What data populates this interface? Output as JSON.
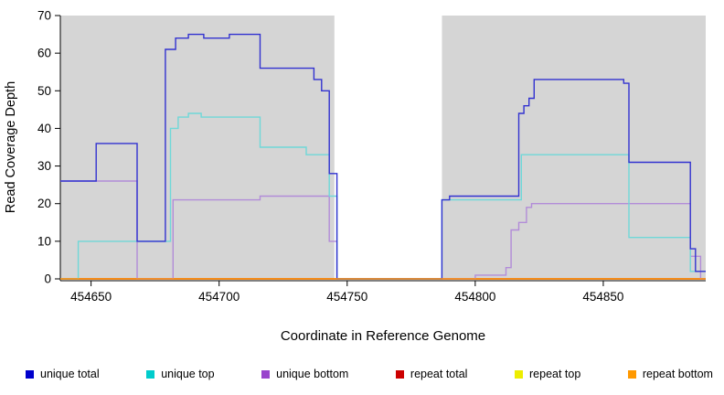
{
  "chart_data": {
    "type": "line",
    "style": "step",
    "title": "",
    "xlabel": "Coordinate in Reference Genome",
    "ylabel": "Read Coverage Depth",
    "xlim": [
      454638,
      454890
    ],
    "ylim": [
      0,
      70
    ],
    "xticks": [
      454650,
      454700,
      454750,
      454800,
      454850
    ],
    "yticks": [
      0,
      10,
      20,
      30,
      40,
      50,
      60,
      70
    ],
    "grid": false,
    "legend_position": "bottom",
    "shaded_regions": {
      "color": "#d5d5d5",
      "ranges": [
        [
          454638,
          454745
        ],
        [
          454787,
          454890
        ]
      ]
    },
    "series": [
      {
        "name": "repeat top",
        "color": "#eded00",
        "points": [
          [
            454638,
            0
          ]
        ]
      },
      {
        "name": "repeat total",
        "color": "#cc0000",
        "points": [
          [
            454638,
            0
          ]
        ]
      },
      {
        "name": "unique bottom",
        "color": "#b28cd8",
        "points": [
          [
            454638,
            26
          ],
          [
            454668,
            0
          ],
          [
            454682,
            21
          ],
          [
            454716,
            22
          ],
          [
            454743,
            10
          ],
          [
            454746,
            0
          ],
          [
            454800,
            1
          ],
          [
            454812,
            3
          ],
          [
            454814,
            13
          ],
          [
            454817,
            15
          ],
          [
            454820,
            19
          ],
          [
            454822,
            20
          ],
          [
            454884,
            6
          ],
          [
            454888,
            0
          ]
        ]
      },
      {
        "name": "unique top",
        "color": "#6fd8d8",
        "points": [
          [
            454638,
            0
          ],
          [
            454645,
            10
          ],
          [
            454681,
            40
          ],
          [
            454684,
            43
          ],
          [
            454688,
            44
          ],
          [
            454693,
            43
          ],
          [
            454716,
            35
          ],
          [
            454734,
            33
          ],
          [
            454743,
            22
          ],
          [
            454746,
            0
          ],
          [
            454787,
            21
          ],
          [
            454818,
            33
          ],
          [
            454858,
            33
          ],
          [
            454860,
            11
          ],
          [
            454884,
            2
          ]
        ]
      },
      {
        "name": "unique total",
        "color": "#3232d0",
        "points": [
          [
            454638,
            26
          ],
          [
            454652,
            36
          ],
          [
            454668,
            10
          ],
          [
            454679,
            61
          ],
          [
            454683,
            64
          ],
          [
            454688,
            65
          ],
          [
            454694,
            64
          ],
          [
            454704,
            65
          ],
          [
            454716,
            56
          ],
          [
            454737,
            53
          ],
          [
            454740,
            50
          ],
          [
            454743,
            28
          ],
          [
            454746,
            0
          ],
          [
            454787,
            21
          ],
          [
            454790,
            22
          ],
          [
            454817,
            44
          ],
          [
            454819,
            46
          ],
          [
            454821,
            48
          ],
          [
            454823,
            53
          ],
          [
            454858,
            52
          ],
          [
            454860,
            31
          ],
          [
            454884,
            8
          ],
          [
            454886,
            2
          ]
        ]
      },
      {
        "name": "repeat bottom",
        "color": "#ff9412",
        "points": [
          [
            454638,
            0
          ]
        ]
      }
    ],
    "legend": [
      {
        "label": "unique total",
        "color": "#0000cc"
      },
      {
        "label": "unique top",
        "color": "#00cccc"
      },
      {
        "label": "unique bottom",
        "color": "#9944cc"
      },
      {
        "label": "repeat total",
        "color": "#cc0000"
      },
      {
        "label": "repeat top",
        "color": "#eded00"
      },
      {
        "label": "repeat bottom",
        "color": "#ff9900"
      }
    ]
  }
}
